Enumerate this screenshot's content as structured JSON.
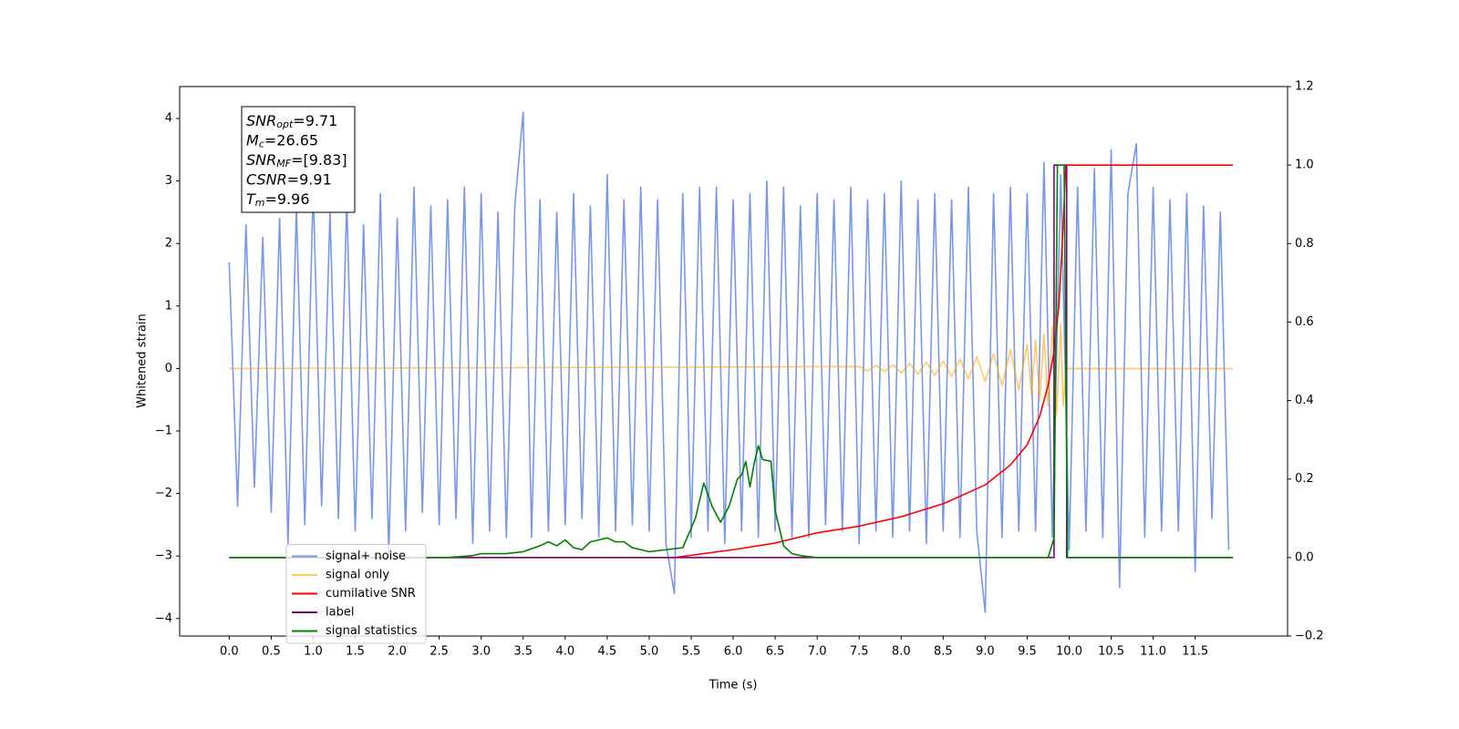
{
  "chart_data": {
    "type": "line",
    "xlabel": "Time (s)",
    "ylabel": "Whitened strain",
    "xlim": [
      -0.59,
      12.6
    ],
    "ylim": [
      -4.28,
      4.51
    ],
    "y2lim": [
      -0.2,
      1.2
    ],
    "xticks": [
      {
        "value": 0,
        "label": "0.0"
      },
      {
        "value": 0.5,
        "label": "0.5"
      },
      {
        "value": 1,
        "label": "1.0"
      },
      {
        "value": 1.5,
        "label": "1.5"
      },
      {
        "value": 2,
        "label": "2.0"
      },
      {
        "value": 2.5,
        "label": "2.5"
      },
      {
        "value": 3,
        "label": "3.0"
      },
      {
        "value": 3.5,
        "label": "3.5"
      },
      {
        "value": 4,
        "label": "4.0"
      },
      {
        "value": 4.5,
        "label": "4.5"
      },
      {
        "value": 5,
        "label": "5.0"
      },
      {
        "value": 5.5,
        "label": "5.5"
      },
      {
        "value": 6,
        "label": "6.0"
      },
      {
        "value": 6.5,
        "label": "6.5"
      },
      {
        "value": 7,
        "label": "7.0"
      },
      {
        "value": 7.5,
        "label": "7.5"
      },
      {
        "value": 8,
        "label": "8.0"
      },
      {
        "value": 8.5,
        "label": "8.5"
      },
      {
        "value": 9,
        "label": "9.0"
      },
      {
        "value": 9.5,
        "label": "9.5"
      },
      {
        "value": 10,
        "label": "10.0"
      },
      {
        "value": 10.5,
        "label": "10.5"
      },
      {
        "value": 11,
        "label": "11.0"
      },
      {
        "value": 11.5,
        "label": "11.5"
      }
    ],
    "yticks": [
      {
        "value": -4,
        "label": "−4"
      },
      {
        "value": -3,
        "label": "−3"
      },
      {
        "value": -2,
        "label": "−2"
      },
      {
        "value": -1,
        "label": "−1"
      },
      0,
      1,
      2,
      3,
      4
    ],
    "y2ticks": [
      {
        "value": -0.2,
        "label": "−0.2"
      },
      {
        "value": 0,
        "label": "0.0"
      },
      0.2,
      0.4,
      0.6,
      0.8,
      {
        "value": 1,
        "label": "1.0"
      },
      1.2
    ],
    "legend": "lower left",
    "annotation_lines": [
      {
        "symbol": "SNR",
        "sub": "opt",
        "text": "=9.71"
      },
      {
        "symbol": "M",
        "sub": "c",
        "text": "=26.65"
      },
      {
        "symbol": "SNR",
        "sub": "MF",
        "text": "=[9.83]"
      },
      {
        "symbol": "CSNR",
        "text": "=9.91"
      },
      {
        "symbol": "T",
        "sub": "m",
        "text": "=9.96"
      }
    ],
    "series": [
      {
        "name": "signal+ noise",
        "color": "royalblue",
        "alpha": 0.7,
        "axis": "y",
        "x": [
          0,
          0.1,
          0.2,
          0.3,
          0.4,
          0.5,
          0.6,
          0.7,
          0.8,
          0.9,
          1,
          1.1,
          1.2,
          1.3,
          1.4,
          1.5,
          1.6,
          1.7,
          1.8,
          1.9,
          2,
          2.1,
          2.2,
          2.3,
          2.4,
          2.5,
          2.6,
          2.7,
          2.8,
          2.9,
          3,
          3.1,
          3.2,
          3.3,
          3.4,
          3.5,
          3.6,
          3.7,
          3.8,
          3.9,
          4,
          4.1,
          4.2,
          4.3,
          4.4,
          4.5,
          4.6,
          4.7,
          4.8,
          4.9,
          5,
          5.1,
          5.2,
          5.3,
          5.4,
          5.5,
          5.6,
          5.7,
          5.8,
          5.9,
          6,
          6.1,
          6.2,
          6.3,
          6.4,
          6.5,
          6.6,
          6.7,
          6.8,
          6.9,
          7,
          7.1,
          7.2,
          7.3,
          7.4,
          7.5,
          7.6,
          7.7,
          7.8,
          7.9,
          8,
          8.1,
          8.2,
          8.3,
          8.4,
          8.5,
          8.6,
          8.7,
          8.8,
          8.9,
          9,
          9.1,
          9.2,
          9.3,
          9.4,
          9.5,
          9.6,
          9.7,
          9.8,
          9.9,
          10,
          10.1,
          10.2,
          10.3,
          10.4,
          10.5,
          10.6,
          10.7,
          10.8,
          10.9,
          11,
          11.1,
          11.2,
          11.3,
          11.4,
          11.5,
          11.6,
          11.7,
          11.8,
          11.9
        ],
        "values": [
          1.7,
          -2.2,
          2.3,
          -1.9,
          2.1,
          -2.3,
          2.4,
          -2.8,
          2.6,
          -2.5,
          2.9,
          -2.2,
          2.5,
          -2.4,
          2.7,
          -2.6,
          2.3,
          -2.4,
          2.8,
          -3.0,
          2.4,
          -2.6,
          2.9,
          -2.3,
          2.6,
          -2.5,
          2.7,
          -2.4,
          2.9,
          -2.8,
          2.8,
          -2.6,
          2.5,
          -2.7,
          2.6,
          4.1,
          -2.7,
          2.7,
          -2.6,
          2.5,
          -2.5,
          2.8,
          -2.4,
          2.6,
          -2.7,
          3.1,
          -2.6,
          2.7,
          -2.5,
          2.9,
          -2.6,
          2.7,
          -2.8,
          -3.6,
          2.8,
          -2.7,
          2.9,
          -2.6,
          2.9,
          -2.8,
          2.7,
          -2.6,
          2.8,
          -2.7,
          3.0,
          -2.6,
          2.9,
          -2.7,
          2.6,
          -2.7,
          2.8,
          -2.5,
          2.7,
          -2.6,
          2.9,
          -2.8,
          2.7,
          -2.6,
          2.8,
          -2.7,
          3.0,
          -2.6,
          2.7,
          -2.8,
          2.8,
          -2.6,
          2.7,
          -2.7,
          2.9,
          -2.6,
          -3.9,
          2.8,
          -2.7,
          2.9,
          -2.6,
          2.8,
          -2.6,
          3.3,
          -2.7,
          3.1,
          -2.9,
          2.9,
          -2.6,
          3.2,
          -2.7,
          3.5,
          -3.5,
          2.8,
          3.6,
          -2.7,
          2.9,
          -2.6,
          2.7,
          -2.6,
          2.8,
          -3.25,
          2.6,
          -2.4,
          2.5,
          -2.9
        ]
      },
      {
        "name": "signal only",
        "color": "orange",
        "alpha": 0.6,
        "axis": "y",
        "x": [
          0,
          7.5,
          7.6,
          7.7,
          7.8,
          7.9,
          8,
          8.1,
          8.2,
          8.3,
          8.4,
          8.5,
          8.6,
          8.7,
          8.8,
          8.9,
          9,
          9.1,
          9.2,
          9.3,
          9.4,
          9.5,
          9.55,
          9.6,
          9.65,
          9.7,
          9.75,
          9.8,
          9.85,
          9.9,
          9.93,
          9.96,
          11.95
        ],
        "values": [
          0,
          0.03,
          -0.04,
          0.05,
          -0.05,
          0.06,
          -0.07,
          0.08,
          -0.09,
          0.1,
          -0.11,
          0.12,
          -0.13,
          0.15,
          -0.17,
          0.19,
          -0.21,
          0.24,
          -0.27,
          0.3,
          -0.34,
          0.39,
          -0.42,
          0.45,
          -0.5,
          0.55,
          -0.6,
          0.68,
          -0.75,
          0.7,
          -0.6,
          0,
          0
        ]
      },
      {
        "name": "cumilative SNR",
        "color": "red",
        "axis": "y2",
        "x": [
          0,
          5.3,
          6,
          6.5,
          7,
          7.5,
          8,
          8.5,
          9,
          9.3,
          9.5,
          9.65,
          9.75,
          9.82,
          9.88,
          9.92,
          9.96,
          11.95
        ],
        "values": [
          0,
          0,
          0.02,
          0.037,
          0.063,
          0.08,
          0.104,
          0.137,
          0.185,
          0.236,
          0.287,
          0.36,
          0.44,
          0.525,
          0.65,
          0.81,
          1.0,
          1.0
        ]
      },
      {
        "name": "label",
        "color": "purple",
        "axis": "y2",
        "x": [
          0,
          9.82,
          9.82,
          9.97,
          9.97,
          11.95
        ],
        "values": [
          0,
          0,
          1,
          1,
          0,
          0
        ]
      },
      {
        "name": "signal statistics",
        "color": "green",
        "axis": "y2",
        "x": [
          0,
          2.6,
          2.9,
          3,
          3.3,
          3.5,
          3.7,
          3.8,
          3.9,
          4,
          4.1,
          4.2,
          4.3,
          4.4,
          4.5,
          4.6,
          4.7,
          4.8,
          5,
          5.2,
          5.4,
          5.55,
          5.65,
          5.75,
          5.85,
          5.95,
          6.05,
          6.1,
          6.15,
          6.2,
          6.25,
          6.3,
          6.35,
          6.45,
          6.5,
          6.6,
          6.7,
          6.8,
          7,
          7.3,
          9.75,
          9.82,
          9.86,
          9.94,
          9.98,
          11.95
        ],
        "values": [
          0,
          0,
          0.005,
          0.01,
          0.01,
          0.015,
          0.03,
          0.04,
          0.03,
          0.045,
          0.025,
          0.02,
          0.04,
          0.045,
          0.05,
          0.04,
          0.04,
          0.025,
          0.015,
          0.02,
          0.025,
          0.1,
          0.19,
          0.13,
          0.09,
          0.13,
          0.2,
          0.21,
          0.245,
          0.18,
          0.24,
          0.285,
          0.25,
          0.245,
          0.12,
          0.03,
          0.01,
          0.005,
          0,
          0,
          0,
          0.05,
          1.0,
          1.0,
          0,
          0
        ]
      }
    ]
  }
}
